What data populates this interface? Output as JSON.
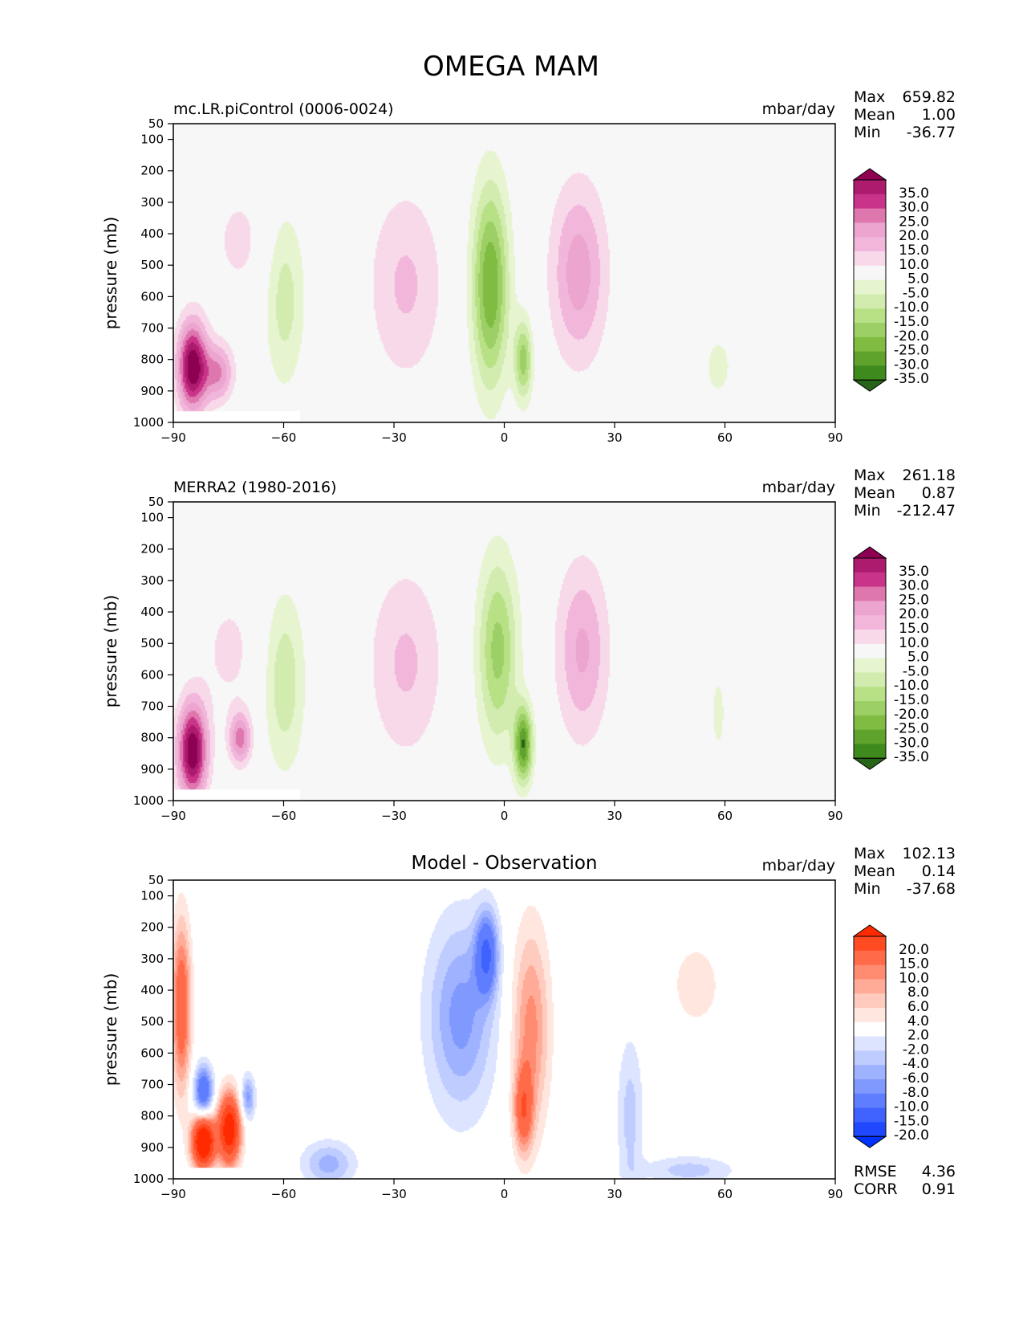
{
  "title": "OMEGA MAM",
  "x_ticks": [
    "−90",
    "−60",
    "−30",
    "0",
    "30",
    "60",
    "90"
  ],
  "y_ticks": [
    "50",
    "100",
    "200",
    "300",
    "400",
    "500",
    "600",
    "700",
    "800",
    "900",
    "1000"
  ],
  "ylabel": "pressure (mb)",
  "units": "mbar/day",
  "stat_labels": {
    "max": "Max",
    "mean": "Mean",
    "min": "Min",
    "rmse": "RMSE",
    "corr": "CORR"
  },
  "chart_data": [
    {
      "type": "heatmap",
      "label": "mc.LR.piControl (0006-0024)",
      "units": "mbar/day",
      "xlim": [
        -90,
        90
      ],
      "ylim": [
        1000,
        50
      ],
      "stats": {
        "max": "659.82",
        "mean": "1.00",
        "min": "-36.77"
      },
      "colorbar_levels": [
        "35.0",
        "30.0",
        "25.0",
        "20.0",
        "15.0",
        "10.0",
        "5.0",
        "-5.0",
        "-10.0",
        "-15.0",
        "-20.0",
        "-25.0",
        "-30.0",
        "-35.0"
      ],
      "colors": [
        "#8e0152",
        "#ad1b6e",
        "#c9348a",
        "#de77ae",
        "#eba5ce",
        "#f1b6da",
        "#f8d9ea",
        "#f7f7f7",
        "#e6f5d0",
        "#d2ecb0",
        "#b8e186",
        "#9ccf65",
        "#7fbc41",
        "#5fa22c",
        "#3f8a1d",
        "#276419"
      ],
      "features": [
        {
          "lat": -72,
          "p": 420,
          "w": 10,
          "h": 220,
          "v": 6
        },
        {
          "lat": -85,
          "p": 820,
          "w": 4,
          "h": 140,
          "v": 40
        },
        {
          "lat": -78,
          "p": 840,
          "w": 4,
          "h": 90,
          "v": 20
        },
        {
          "lat": -60,
          "p": 600,
          "w": 5.5,
          "h": 280,
          "v": -13
        },
        {
          "lat": -27,
          "p": 560,
          "w": 10,
          "h": 300,
          "v": 11
        },
        {
          "lat": -4,
          "p": 560,
          "w": 5,
          "h": 320,
          "v": -30
        },
        {
          "lat": 5,
          "p": 800,
          "w": 2.5,
          "h": 130,
          "v": -22
        },
        {
          "lat": 20,
          "p": 520,
          "w": 7.5,
          "h": 280,
          "v": 18
        },
        {
          "lat": 58,
          "p": 820,
          "w": 6,
          "h": 160,
          "v": -6
        },
        {
          "lat": 75,
          "p": 700,
          "w": 3,
          "h": 170,
          "v": 5
        }
      ]
    },
    {
      "type": "heatmap",
      "label": "MERRA2 (1980-2016)",
      "units": "mbar/day",
      "xlim": [
        -90,
        90
      ],
      "ylim": [
        1000,
        50
      ],
      "stats": {
        "max": "261.18",
        "mean": "0.87",
        "min": "-212.47"
      },
      "colorbar_levels": [
        "35.0",
        "30.0",
        "25.0",
        "20.0",
        "15.0",
        "10.0",
        "5.0",
        "-5.0",
        "-10.0",
        "-15.0",
        "-20.0",
        "-25.0",
        "-30.0",
        "-35.0"
      ],
      "colors": [
        "#8e0152",
        "#ad1b6e",
        "#c9348a",
        "#de77ae",
        "#eba5ce",
        "#f1b6da",
        "#f8d9ea",
        "#f7f7f7",
        "#e6f5d0",
        "#d2ecb0",
        "#b8e186",
        "#9ccf65",
        "#7fbc41",
        "#5fa22c",
        "#3f8a1d",
        "#276419"
      ],
      "features": [
        {
          "lat": -75,
          "p": 520,
          "w": 9,
          "h": 230,
          "v": 6
        },
        {
          "lat": -85,
          "p": 840,
          "w": 4,
          "h": 150,
          "v": 40
        },
        {
          "lat": -72,
          "p": 800,
          "w": 3,
          "h": 80,
          "v": 22
        },
        {
          "lat": -60,
          "p": 620,
          "w": 5.5,
          "h": 280,
          "v": -14
        },
        {
          "lat": -27,
          "p": 560,
          "w": 10,
          "h": 300,
          "v": 11
        },
        {
          "lat": -2,
          "p": 520,
          "w": 5.5,
          "h": 300,
          "v": -22
        },
        {
          "lat": 5,
          "p": 820,
          "w": 2.5,
          "h": 120,
          "v": -34
        },
        {
          "lat": 21,
          "p": 520,
          "w": 7,
          "h": 280,
          "v": 16
        },
        {
          "lat": 58,
          "p": 720,
          "w": 3,
          "h": 200,
          "v": -6
        },
        {
          "lat": 78,
          "p": 800,
          "w": 4,
          "h": 150,
          "v": 5
        }
      ]
    },
    {
      "type": "heatmap",
      "label": "Model - Observation",
      "units": "mbar/day",
      "xlim": [
        -90,
        90
      ],
      "ylim": [
        1000,
        50
      ],
      "stats": {
        "max": "102.13",
        "mean": "0.14",
        "min": "-37.68",
        "rmse": "4.36",
        "corr": "0.91"
      },
      "colorbar_levels": [
        "20.0",
        "15.0",
        "10.0",
        "8.0",
        "6.0",
        "4.0",
        "2.0",
        "-2.0",
        "-4.0",
        "-6.0",
        "-8.0",
        "-10.0",
        "-15.0",
        "-20.0"
      ],
      "colors": [
        "#ff2a00",
        "#ff4a22",
        "#ff6a48",
        "#ff8b70",
        "#ffab98",
        "#ffcbbe",
        "#ffe6de",
        "#ffffff",
        "#dde4ff",
        "#bfccff",
        "#9fb2ff",
        "#8099ff",
        "#5f7eff",
        "#3f62ff",
        "#2048ff",
        "#0032ff"
      ],
      "features": [
        {
          "lat": -88,
          "p": 450,
          "w": 2.5,
          "h": 260,
          "v": 14
        },
        {
          "lat": -82,
          "p": 880,
          "w": 3,
          "h": 80,
          "v": 30
        },
        {
          "lat": -75,
          "p": 840,
          "w": 3,
          "h": 110,
          "v": 25
        },
        {
          "lat": -82,
          "p": 720,
          "w": 2.5,
          "h": 80,
          "v": -15
        },
        {
          "lat": -70,
          "p": 740,
          "w": 2,
          "h": 70,
          "v": -9
        },
        {
          "lat": -48,
          "p": 950,
          "w": 7,
          "h": 70,
          "v": -7
        },
        {
          "lat": -12,
          "p": 480,
          "w": 9,
          "h": 300,
          "v": -9
        },
        {
          "lat": -5,
          "p": 280,
          "w": 3,
          "h": 130,
          "v": -14
        },
        {
          "lat": 7,
          "p": 520,
          "w": 5,
          "h": 320,
          "v": 9
        },
        {
          "lat": 5,
          "p": 780,
          "w": 2.5,
          "h": 130,
          "v": 12
        },
        {
          "lat": 34,
          "p": 800,
          "w": 3.5,
          "h": 250,
          "v": -5
        },
        {
          "lat": 50,
          "p": 970,
          "w": 12,
          "h": 45,
          "v": -5
        },
        {
          "lat": 52,
          "p": 380,
          "w": 8,
          "h": 160,
          "v": 3
        }
      ]
    }
  ]
}
